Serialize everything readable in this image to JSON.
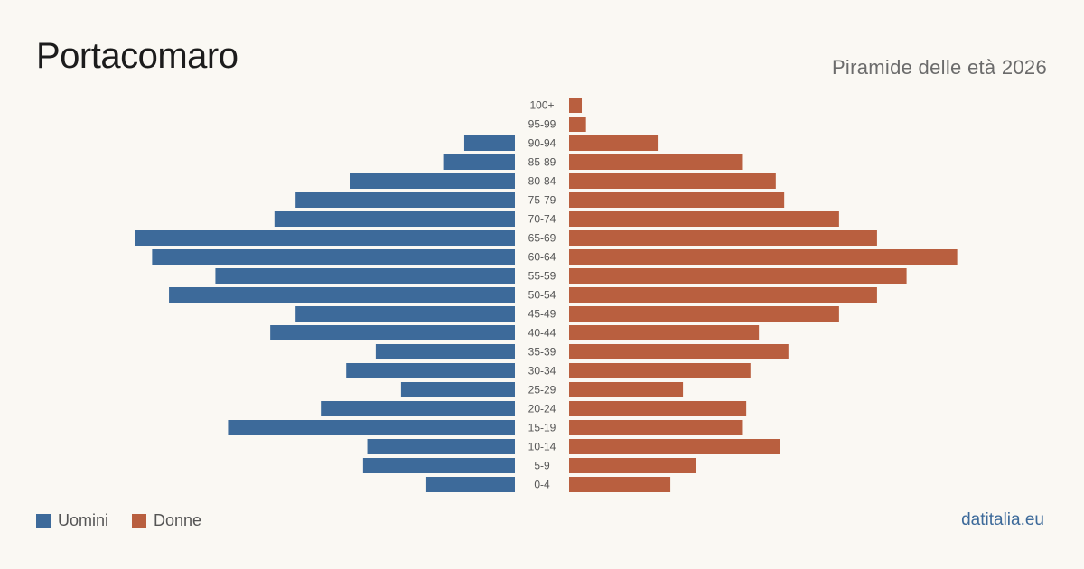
{
  "header": {
    "title": "Portacomaro",
    "subtitle": "Piramide delle età 2026"
  },
  "legend": {
    "men_label": "Uomini",
    "women_label": "Donne"
  },
  "footer": {
    "brand": "datitalia.eu"
  },
  "colors": {
    "men": "#3d6a9a",
    "women": "#b95f3f",
    "age_label": "#555555"
  },
  "chart_data": {
    "type": "bar",
    "orientation": "horizontal-pyramid",
    "title": "Portacomaro",
    "subtitle": "Piramide delle età 2026",
    "categories": [
      "100+",
      "95-99",
      "90-94",
      "85-89",
      "80-84",
      "75-79",
      "70-74",
      "65-69",
      "60-64",
      "55-59",
      "50-54",
      "45-49",
      "40-44",
      "35-39",
      "30-34",
      "25-29",
      "20-24",
      "15-19",
      "10-14",
      "5-9",
      "0-4"
    ],
    "series": [
      {
        "name": "Uomini",
        "values": [
          0,
          0,
          12,
          17,
          39,
          52,
          57,
          90,
          86,
          71,
          82,
          52,
          58,
          33,
          40,
          27,
          46,
          68,
          35,
          36,
          21
        ]
      },
      {
        "name": "Donne",
        "values": [
          3,
          4,
          21,
          41,
          49,
          51,
          64,
          73,
          92,
          80,
          73,
          64,
          45,
          52,
          43,
          27,
          42,
          41,
          50,
          30,
          24
        ]
      }
    ],
    "legend_position": "bottom-left",
    "grid": false
  }
}
